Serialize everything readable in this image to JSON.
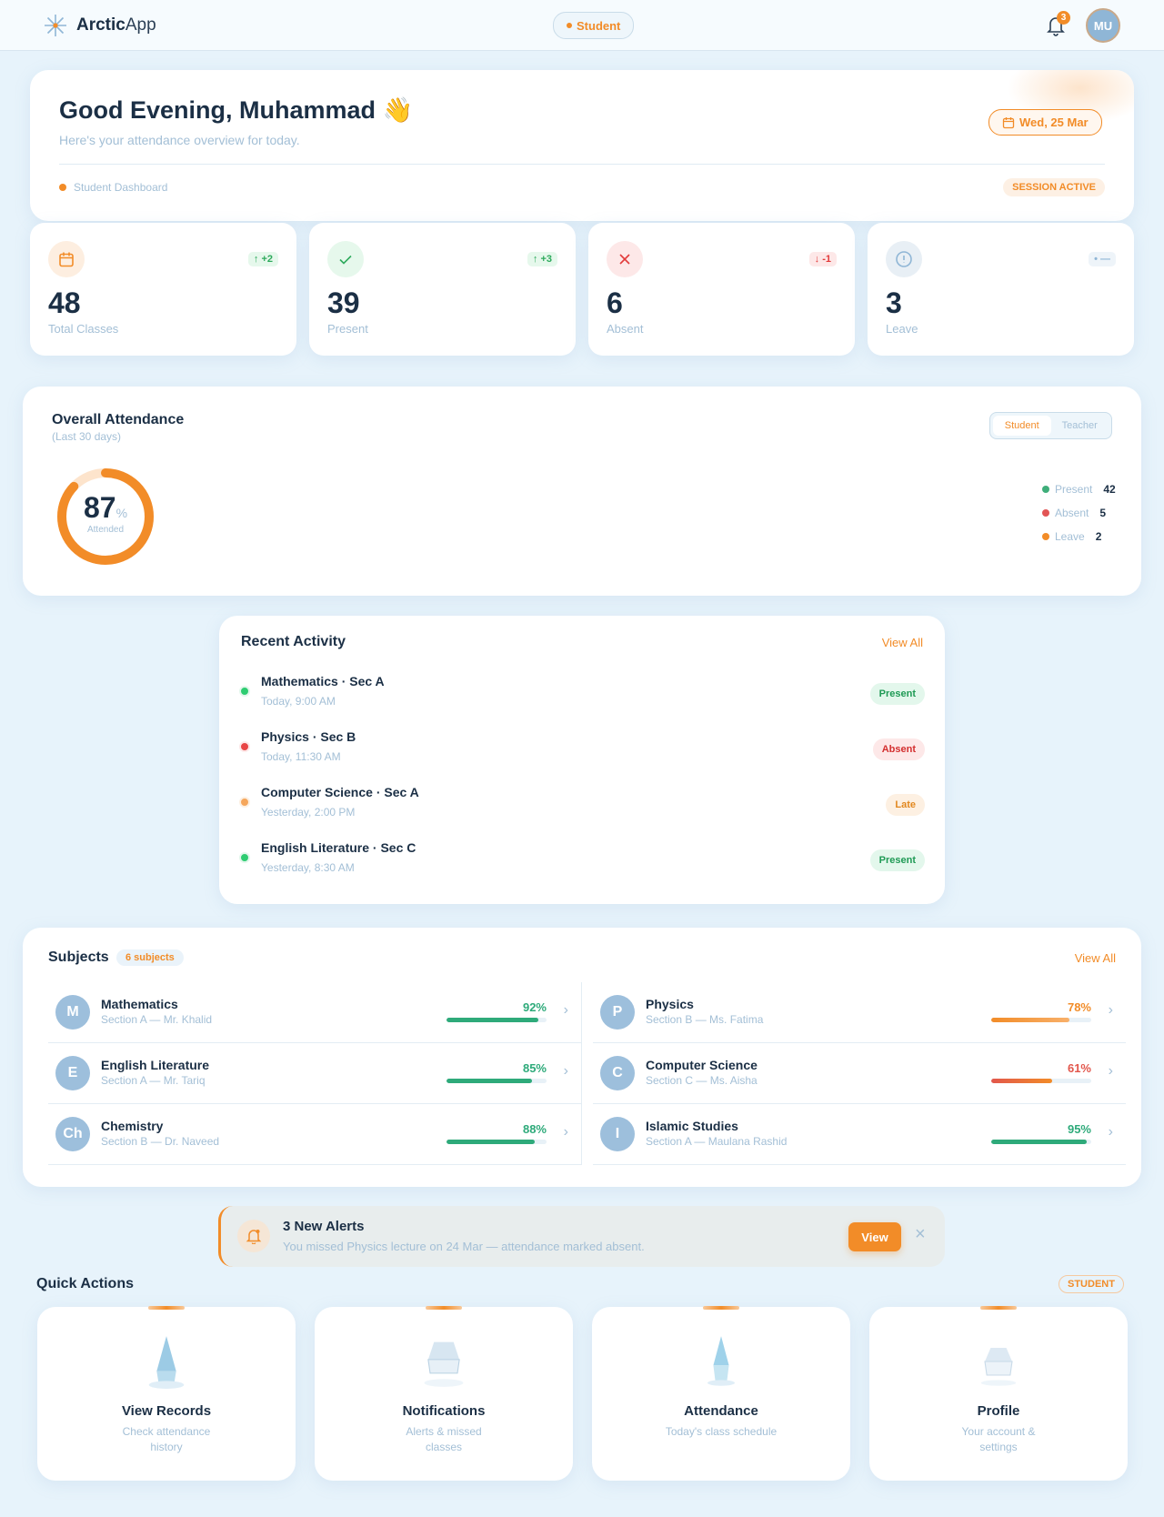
{
  "header": {
    "brand_bold": "Arctic",
    "brand_light": "App",
    "role": "Student",
    "notifications": "3",
    "avatar": "MU"
  },
  "hero": {
    "greeting": "Good Evening, Muhammad",
    "emoji": "👋",
    "subtitle": "Here's your attendance overview for today.",
    "date": "Wed, 25 Mar",
    "crumb": "Student Dashboard",
    "session": "SESSION ACTIVE"
  },
  "stats": [
    {
      "value": "48",
      "label": "Total Classes",
      "delta": "↑ +2",
      "icon": "calendar-icon"
    },
    {
      "value": "39",
      "label": "Present",
      "delta": "↑ +3",
      "icon": "check-icon"
    },
    {
      "value": "6",
      "label": "Absent",
      "delta": "↓ -1",
      "icon": "x-icon"
    },
    {
      "value": "3",
      "label": "Leave",
      "delta": "• —",
      "icon": "info-icon"
    }
  ],
  "overall": {
    "title": "Overall Attendance",
    "subtitle": "(Last 30 days)",
    "toggle": [
      "Student",
      "Teacher"
    ],
    "active_toggle": "Student",
    "percent": "87",
    "percent_sign": "%",
    "caption": "Attended",
    "percent_value": 87,
    "legend": [
      {
        "label": "Present",
        "value": "42",
        "color": "#3fae7a"
      },
      {
        "label": "Absent",
        "value": "5",
        "color": "#e25555"
      },
      {
        "label": "Leave",
        "value": "2",
        "color": "#f28c28"
      }
    ]
  },
  "activity": {
    "title": "Recent Activity",
    "view_all": "View All",
    "items": [
      {
        "title": "Mathematics · Sec A",
        "time": "Today, 9:00 AM",
        "status": "Present"
      },
      {
        "title": "Physics · Sec B",
        "time": "Today, 11:30 AM",
        "status": "Absent"
      },
      {
        "title": "Computer Science · Sec A",
        "time": "Yesterday, 2:00 PM",
        "status": "Late"
      },
      {
        "title": "English Literature · Sec C",
        "time": "Yesterday, 8:30 AM",
        "status": "Present"
      }
    ]
  },
  "subjects": {
    "title": "Subjects",
    "count": "6 subjects",
    "view_all": "View All",
    "items": [
      {
        "initial": "M",
        "name": "Mathematics",
        "section": "Section A — Mr. Khalid",
        "percent": "92%",
        "value": 92
      },
      {
        "initial": "P",
        "name": "Physics",
        "section": "Section B — Ms. Fatima",
        "percent": "78%",
        "value": 78
      },
      {
        "initial": "E",
        "name": "English Literature",
        "section": "Section A — Mr. Tariq",
        "percent": "85%",
        "value": 85
      },
      {
        "initial": "C",
        "name": "Computer Science",
        "section": "Section C — Ms. Aisha",
        "percent": "61%",
        "value": 61
      },
      {
        "initial": "Ch",
        "name": "Chemistry",
        "section": "Section B — Dr. Naveed",
        "percent": "88%",
        "value": 88
      },
      {
        "initial": "I",
        "name": "Islamic Studies",
        "section": "Section A — Maulana Rashid",
        "percent": "95%",
        "value": 95
      }
    ]
  },
  "alert": {
    "title": "3 New Alerts",
    "message": "You missed Physics lecture on 24 Mar — attendance marked absent.",
    "view": "View",
    "close": "×"
  },
  "quick": {
    "title": "Quick Actions",
    "badge": "STUDENT",
    "items": [
      {
        "title": "View Records",
        "desc": "Check attendance history"
      },
      {
        "title": "Notifications",
        "desc": "Alerts & missed classes"
      },
      {
        "title": "Attendance",
        "desc": "Today's class schedule"
      },
      {
        "title": "Profile",
        "desc": "Your account & settings"
      }
    ]
  }
}
